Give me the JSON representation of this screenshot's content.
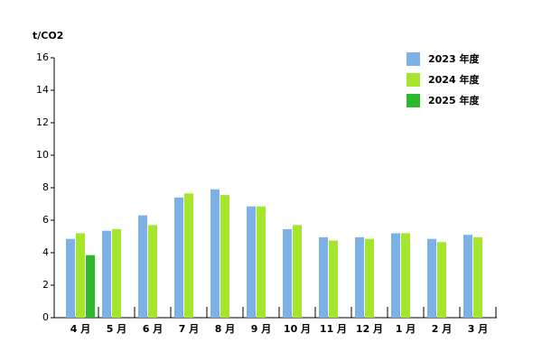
{
  "chart_data": {
    "type": "bar",
    "y_label": "t/CO2",
    "categories": [
      "4 月",
      "5 月",
      "6 月",
      "7 月",
      "8 月",
      "9 月",
      "10 月",
      "11 月",
      "12 月",
      "1 月",
      "2 月",
      "3 月"
    ],
    "series": [
      {
        "name": "2023 年度",
        "color": "#7cb1e8",
        "values": [
          4.85,
          5.35,
          6.3,
          7.4,
          7.9,
          6.85,
          5.45,
          4.95,
          4.95,
          5.2,
          4.85,
          5.1
        ]
      },
      {
        "name": "2024 年度",
        "color": "#a5e52e",
        "values": [
          5.2,
          5.45,
          5.7,
          7.65,
          7.55,
          6.85,
          5.7,
          4.75,
          4.85,
          5.2,
          4.65,
          4.95
        ]
      },
      {
        "name": "2025 年度",
        "color": "#2eb82e",
        "values": [
          3.85,
          null,
          null,
          null,
          null,
          null,
          null,
          null,
          null,
          null,
          null,
          null
        ]
      }
    ],
    "ylim": [
      0,
      16
    ],
    "yticks": [
      0,
      2,
      4,
      6,
      8,
      10,
      12,
      14,
      16
    ]
  }
}
